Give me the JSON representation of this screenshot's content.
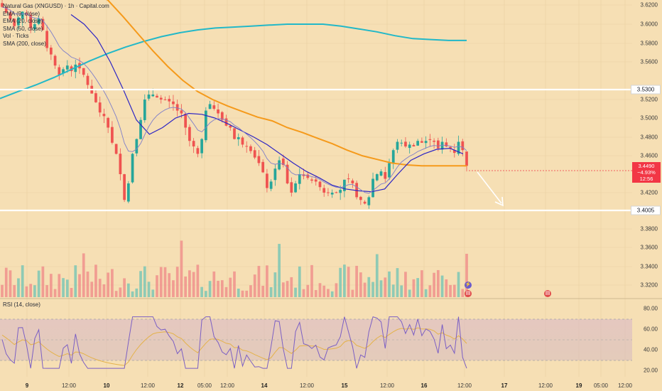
{
  "chart_data": {
    "type": "candlestick",
    "title": "Natural Gas (XNGUSD) · 1h · Capital.com",
    "legend": [
      {
        "label": "EMA (9, close)",
        "color": "#7e7ec9"
      },
      {
        "label": "EMA (20, close)",
        "color": "#2c24c4"
      },
      {
        "label": "SMA (50, close)",
        "color": "#f59a1b"
      },
      {
        "label": "Vol · Ticks",
        "color": "#26a69a"
      },
      {
        "label": "SMA (200, close)",
        "color": "#22b8c8"
      }
    ],
    "price_axis_ticks": [
      "3.6200",
      "3.6000",
      "3.5800",
      "3.5600",
      "3.5300",
      "3.5200",
      "3.5000",
      "3.4800",
      "3.4600",
      "3.4200",
      "3.4005",
      "3.3800",
      "3.3600",
      "3.3400",
      "3.3200"
    ],
    "horizontal_levels": [
      {
        "label": "3.5300",
        "price": 3.53
      },
      {
        "label": "3.4005",
        "price": 3.4005
      }
    ],
    "current_price": {
      "price": "3.4490",
      "change": "−4.93%",
      "countdown": "12:56"
    },
    "x_axis_labels": [
      {
        "label": "9",
        "major": true
      },
      {
        "label": "12:00",
        "major": false
      },
      {
        "label": "10",
        "major": true
      },
      {
        "label": "12:00",
        "major": false
      },
      {
        "label": "12",
        "major": true
      },
      {
        "label": "05:00",
        "major": false
      },
      {
        "label": "12:00",
        "major": false
      },
      {
        "label": "14",
        "major": true
      },
      {
        "label": "12:00",
        "major": false
      },
      {
        "label": "15",
        "major": true
      },
      {
        "label": "12:00",
        "major": false
      },
      {
        "label": "16",
        "major": true
      },
      {
        "label": "12:00",
        "major": false
      },
      {
        "label": "17",
        "major": true
      },
      {
        "label": "12:00",
        "major": false
      },
      {
        "label": "19",
        "major": true
      },
      {
        "label": "05:00",
        "major": false
      },
      {
        "label": "12:00",
        "major": false
      }
    ],
    "close_path": [
      3.618,
      3.612,
      3.605,
      3.598,
      3.607,
      3.613,
      3.61,
      3.596,
      3.6,
      3.606,
      3.594,
      3.575,
      3.568,
      3.556,
      3.546,
      3.552,
      3.556,
      3.55,
      3.557,
      3.553,
      3.546,
      3.535,
      3.526,
      3.517,
      3.506,
      3.502,
      3.49,
      3.474,
      3.462,
      3.44,
      3.412,
      3.43,
      3.462,
      3.478,
      3.498,
      3.52,
      3.525,
      3.525,
      3.522,
      3.52,
      3.52,
      3.518,
      3.515,
      3.508,
      3.505,
      3.49,
      3.476,
      3.47,
      3.462,
      3.478,
      3.508,
      3.515,
      3.51,
      3.505,
      3.498,
      3.492,
      3.49,
      3.478,
      3.48,
      3.472,
      3.47,
      3.465,
      3.458,
      3.452,
      3.442,
      3.425,
      3.432,
      3.446,
      3.455,
      3.45,
      3.43,
      3.42,
      3.43,
      3.44,
      3.438,
      3.436,
      3.433,
      3.432,
      3.426,
      3.42,
      3.42,
      3.42,
      3.42,
      3.423,
      3.434,
      3.435,
      3.43,
      3.415,
      3.412,
      3.408,
      3.415,
      3.435,
      3.44,
      3.443,
      3.435,
      3.452,
      3.466,
      3.475,
      3.474,
      3.47,
      3.472,
      3.47,
      3.476,
      3.474,
      3.476,
      3.477,
      3.475,
      3.468,
      3.475,
      3.47,
      3.468,
      3.463,
      3.475,
      3.466,
      3.449
    ],
    "rsi": {
      "label": "RSI (14, close)",
      "ticks": [
        "80.00",
        "60.00",
        "40.00",
        "20.00"
      ],
      "upper_band": 70,
      "lower_band": 30
    },
    "sma200_path": [
      3.521,
      3.528,
      3.535,
      3.543,
      3.552,
      3.561,
      3.569,
      3.576,
      3.582,
      3.587,
      3.591,
      3.594,
      3.596,
      3.597,
      3.598,
      3.599,
      3.6,
      3.6,
      3.6,
      3.598,
      3.595,
      3.592,
      3.588,
      3.585,
      3.584,
      3.583,
      3.583
    ],
    "sma50_path": [
      3.64,
      3.635,
      3.625,
      3.608,
      3.59,
      3.572,
      3.555,
      3.54,
      3.528,
      3.52,
      3.513,
      3.507,
      3.501,
      3.497,
      3.49,
      3.485,
      3.479,
      3.473,
      3.466,
      3.46,
      3.456,
      3.452,
      3.45,
      3.449,
      3.449,
      3.449,
      3.449
    ],
    "ema20_path": [
      3.61,
      3.6,
      3.585,
      3.56,
      3.53,
      3.498,
      3.483,
      3.49,
      3.5,
      3.505,
      3.504,
      3.5,
      3.494,
      3.487,
      3.48,
      3.472,
      3.462,
      3.452,
      3.443,
      3.436,
      3.428,
      3.424,
      3.422,
      3.421,
      3.424,
      3.44,
      3.455,
      3.462,
      3.467,
      3.468,
      3.462
    ]
  }
}
